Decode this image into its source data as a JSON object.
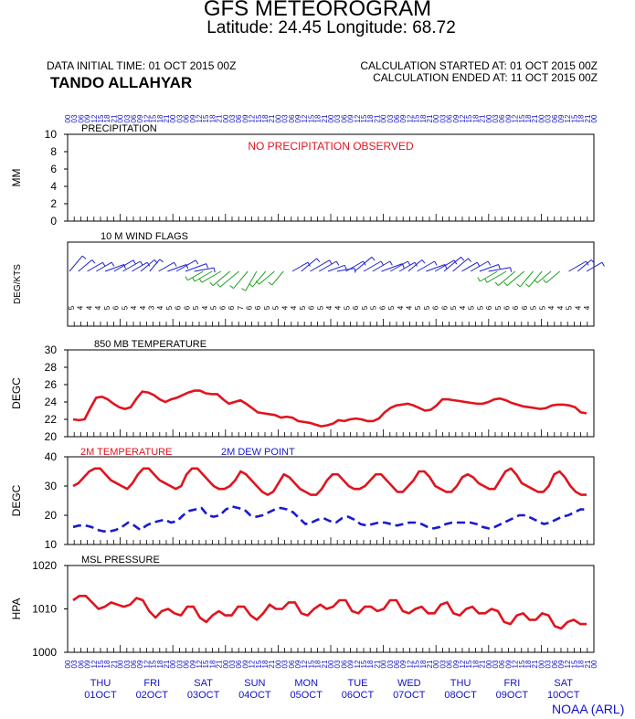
{
  "header": {
    "title": "GFS METEOROGRAM",
    "subtitle": "Latitude: 24.45 Longitude:  68.72",
    "init_time": "DATA INITIAL TIME: 01 OCT 2015 00Z",
    "station": "TANDO ALLAHYAR",
    "calc_started": "CALCULATION STARTED AT: 01 OCT 2015 00Z",
    "calc_ended": "CALCULATION ENDED AT: 11 OCT 2015 00Z"
  },
  "footer": {
    "credit": "NOAA (ARL)"
  },
  "colors": {
    "temperature": "#e0141e",
    "dewpoint": "#1a1ad0",
    "wind_blue": "#2020d0",
    "wind_green": "#20a020",
    "axis_text_blue": "#1010c8"
  },
  "chart_data": [
    {
      "type": "bar",
      "panel": "precipitation",
      "title": "PRECIPITATION",
      "ylabel": "MM",
      "ylim": [
        0,
        10
      ],
      "yticks": [
        0,
        2,
        4,
        6,
        8,
        10
      ],
      "annotation": "NO PRECIPITATION OBSERVED",
      "values": []
    },
    {
      "type": "line",
      "panel": "wind",
      "title": "10 M  WIND FLAGS",
      "ylabel": "DEG/KTS",
      "direction_deg": [
        40,
        50,
        60,
        60,
        70,
        60,
        60,
        60,
        50,
        40,
        60,
        70,
        60,
        70,
        80,
        240,
        240,
        240,
        230,
        230,
        220,
        210,
        220,
        230,
        220,
        60,
        50,
        60,
        60,
        70,
        80,
        60,
        50,
        60,
        60,
        70,
        60,
        60,
        50,
        60,
        70,
        60,
        50,
        50,
        60,
        60,
        70,
        80,
        240,
        240,
        230,
        230,
        220,
        220,
        230,
        230,
        60,
        50,
        60
      ],
      "speed_kts": [
        5,
        4,
        4,
        4,
        5,
        6,
        5,
        4,
        4,
        3,
        4,
        5,
        6,
        6,
        5,
        4,
        5,
        6,
        6,
        7,
        6,
        6,
        5,
        5,
        4,
        4,
        5,
        6,
        5,
        4,
        4,
        5,
        6,
        5,
        5,
        6,
        5,
        4,
        4,
        5,
        5,
        6,
        6,
        5,
        4,
        5,
        5,
        6,
        5,
        6,
        6,
        6,
        5,
        5,
        4,
        4,
        5,
        4,
        4
      ]
    },
    {
      "type": "line",
      "panel": "t850",
      "title": "850 MB  TEMPERATURE",
      "ylabel": "DEGC",
      "ylim": [
        20,
        30
      ],
      "yticks": [
        20,
        22,
        24,
        26,
        28,
        30
      ],
      "series": [
        {
          "values": [
            22.0,
            21.9,
            22.0,
            23.3,
            24.5,
            24.6,
            24.3,
            23.8,
            23.4,
            23.2,
            23.4,
            24.4,
            25.2,
            25.1,
            24.8,
            24.3,
            24.0,
            24.3,
            24.5,
            24.8,
            25.1,
            25.3,
            25.3,
            25.0,
            24.9,
            24.9,
            24.3,
            23.8,
            24.0,
            24.2,
            23.8,
            23.3,
            22.8,
            22.7,
            22.6,
            22.5,
            22.2,
            22.3,
            22.2,
            21.8,
            21.7,
            21.6,
            21.4,
            21.2,
            21.3,
            21.5,
            21.9,
            21.8,
            22.0,
            22.1,
            22.0,
            21.8,
            21.8,
            22.1,
            22.8,
            23.3,
            23.6,
            23.7,
            23.8,
            23.6,
            23.3,
            23.0,
            23.1,
            23.6,
            24.3,
            24.3,
            24.2,
            24.1,
            24.0,
            23.9,
            23.8,
            23.8,
            24.0,
            24.3,
            24.4,
            24.2,
            23.9,
            23.7,
            23.5,
            23.4,
            23.3,
            23.2,
            23.3,
            23.6,
            23.7,
            23.7,
            23.6,
            23.4,
            22.8,
            22.7
          ]
        }
      ]
    },
    {
      "type": "line",
      "panel": "surface_temp",
      "ylabel": "DEGC",
      "ylim": [
        10,
        40
      ],
      "yticks": [
        10,
        20,
        30,
        40
      ],
      "legend": [
        "2M TEMPERATURE",
        "2M   DEW POINT"
      ],
      "series": [
        {
          "name": "2M TEMPERATURE",
          "values": [
            30,
            31,
            33,
            35,
            36,
            36,
            34,
            32,
            31,
            30,
            29,
            31,
            34,
            36,
            36,
            34,
            32,
            31,
            30,
            29,
            30,
            34,
            36,
            36,
            34,
            32,
            30,
            29,
            29,
            30,
            32,
            35,
            34,
            32,
            30,
            28,
            27,
            28,
            31,
            34,
            33,
            31,
            29,
            28,
            27,
            27,
            29,
            32,
            34,
            34,
            32,
            30,
            29,
            29,
            30,
            32,
            34,
            34,
            32,
            30,
            28,
            28,
            30,
            32,
            35,
            35,
            33,
            30,
            29,
            28,
            28,
            30,
            33,
            34,
            33,
            31,
            30,
            29,
            29,
            32,
            35,
            36,
            34,
            31,
            30,
            29,
            28,
            28,
            30,
            34,
            35,
            33,
            30,
            28,
            27,
            27
          ]
        },
        {
          "name": "2M   DEW POINT",
          "values": [
            16,
            16.5,
            16.5,
            16,
            15,
            14.5,
            14.5,
            15,
            16,
            17.5,
            16.5,
            15,
            16.5,
            17.5,
            18,
            18.5,
            17.5,
            18,
            20,
            21.5,
            22,
            22.5,
            20,
            19.5,
            20,
            22,
            23,
            22.5,
            22,
            20,
            19.5,
            20,
            21,
            22,
            22.5,
            22,
            21,
            19,
            17,
            17.5,
            18.5,
            19,
            18,
            17.5,
            19,
            19.5,
            18.5,
            17,
            16.5,
            17,
            17.5,
            17.5,
            17,
            16.5,
            17,
            17.5,
            17.5,
            17,
            16,
            15.5,
            16,
            17,
            17.5,
            17.5,
            17.5,
            17.5,
            17,
            16,
            15.5,
            16,
            17,
            18,
            19,
            20,
            20,
            19,
            18,
            17,
            17.5,
            18.5,
            19.5,
            20,
            21,
            22,
            22
          ]
        }
      ]
    },
    {
      "type": "line",
      "panel": "pressure",
      "title": "MSL PRESSURE",
      "ylabel": "HPA",
      "ylim": [
        1000,
        1020
      ],
      "yticks": [
        1000,
        1010,
        1020
      ],
      "series": [
        {
          "values": [
            1012,
            1013,
            1013,
            1011.5,
            1010,
            1010.5,
            1011.5,
            1011,
            1010.5,
            1011,
            1012.5,
            1012,
            1009.5,
            1008,
            1009.5,
            1010,
            1009,
            1008.5,
            1010.5,
            1010.5,
            1008,
            1007,
            1008.5,
            1009.5,
            1008.5,
            1008.5,
            1010.5,
            1010.5,
            1008.5,
            1007.5,
            1009,
            1011,
            1010,
            1010,
            1011.5,
            1011.5,
            1009,
            1008.5,
            1010,
            1011,
            1010,
            1010.5,
            1012,
            1012,
            1009.5,
            1009,
            1010.5,
            1010.5,
            1009.5,
            1010,
            1012,
            1012,
            1009.5,
            1009,
            1010,
            1010.5,
            1009,
            1009,
            1011,
            1011.5,
            1009,
            1008.5,
            1010,
            1010.5,
            1009,
            1009,
            1010,
            1009.5,
            1007,
            1006.5,
            1008.5,
            1009,
            1007.5,
            1007.5,
            1009,
            1008.5,
            1006,
            1005.5,
            1007,
            1007.5,
            1006.5,
            1006.5
          ]
        }
      ]
    }
  ],
  "time_axis": {
    "days": [
      {
        "dow": "THU",
        "date": "01OCT"
      },
      {
        "dow": "FRI",
        "date": "02OCT"
      },
      {
        "dow": "SAT",
        "date": "03OCT"
      },
      {
        "dow": "SUN",
        "date": "04OCT"
      },
      {
        "dow": "MON",
        "date": "05OCT"
      },
      {
        "dow": "TUE",
        "date": "06OCT"
      },
      {
        "dow": "WED",
        "date": "07OCT"
      },
      {
        "dow": "THU",
        "date": "08OCT"
      },
      {
        "dow": "FRI",
        "date": "09OCT"
      },
      {
        "dow": "SAT",
        "date": "10OCT"
      }
    ],
    "hour_labels": [
      "00",
      "03",
      "06",
      "09",
      "12",
      "15",
      "18",
      "21"
    ]
  }
}
